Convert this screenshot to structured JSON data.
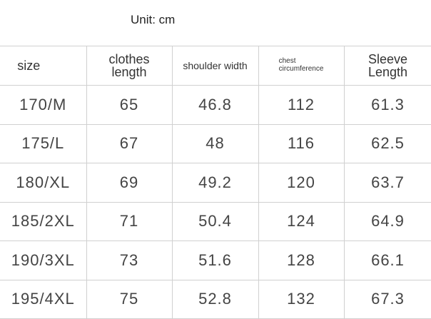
{
  "unit_label": "Unit: cm",
  "headers": {
    "size": "size",
    "clothes_length": [
      "clothes",
      "length"
    ],
    "shoulder_width": "shoulder width",
    "chest": [
      "chest",
      "circumference"
    ],
    "sleeve_length": [
      "Sleeve",
      "Length"
    ]
  },
  "rows": [
    [
      "170/M",
      "65",
      "46.8",
      "112",
      "61.3"
    ],
    [
      "175/L",
      "67",
      "48",
      "116",
      "62.5"
    ],
    [
      "180/XL",
      "69",
      "49.2",
      "120",
      "63.7"
    ],
    [
      "185/2XL",
      "71",
      "50.4",
      "124",
      "64.9"
    ],
    [
      "190/3XL",
      "73",
      "51.6",
      "128",
      "66.1"
    ],
    [
      "195/4XL",
      "75",
      "52.8",
      "132",
      "67.3"
    ]
  ]
}
